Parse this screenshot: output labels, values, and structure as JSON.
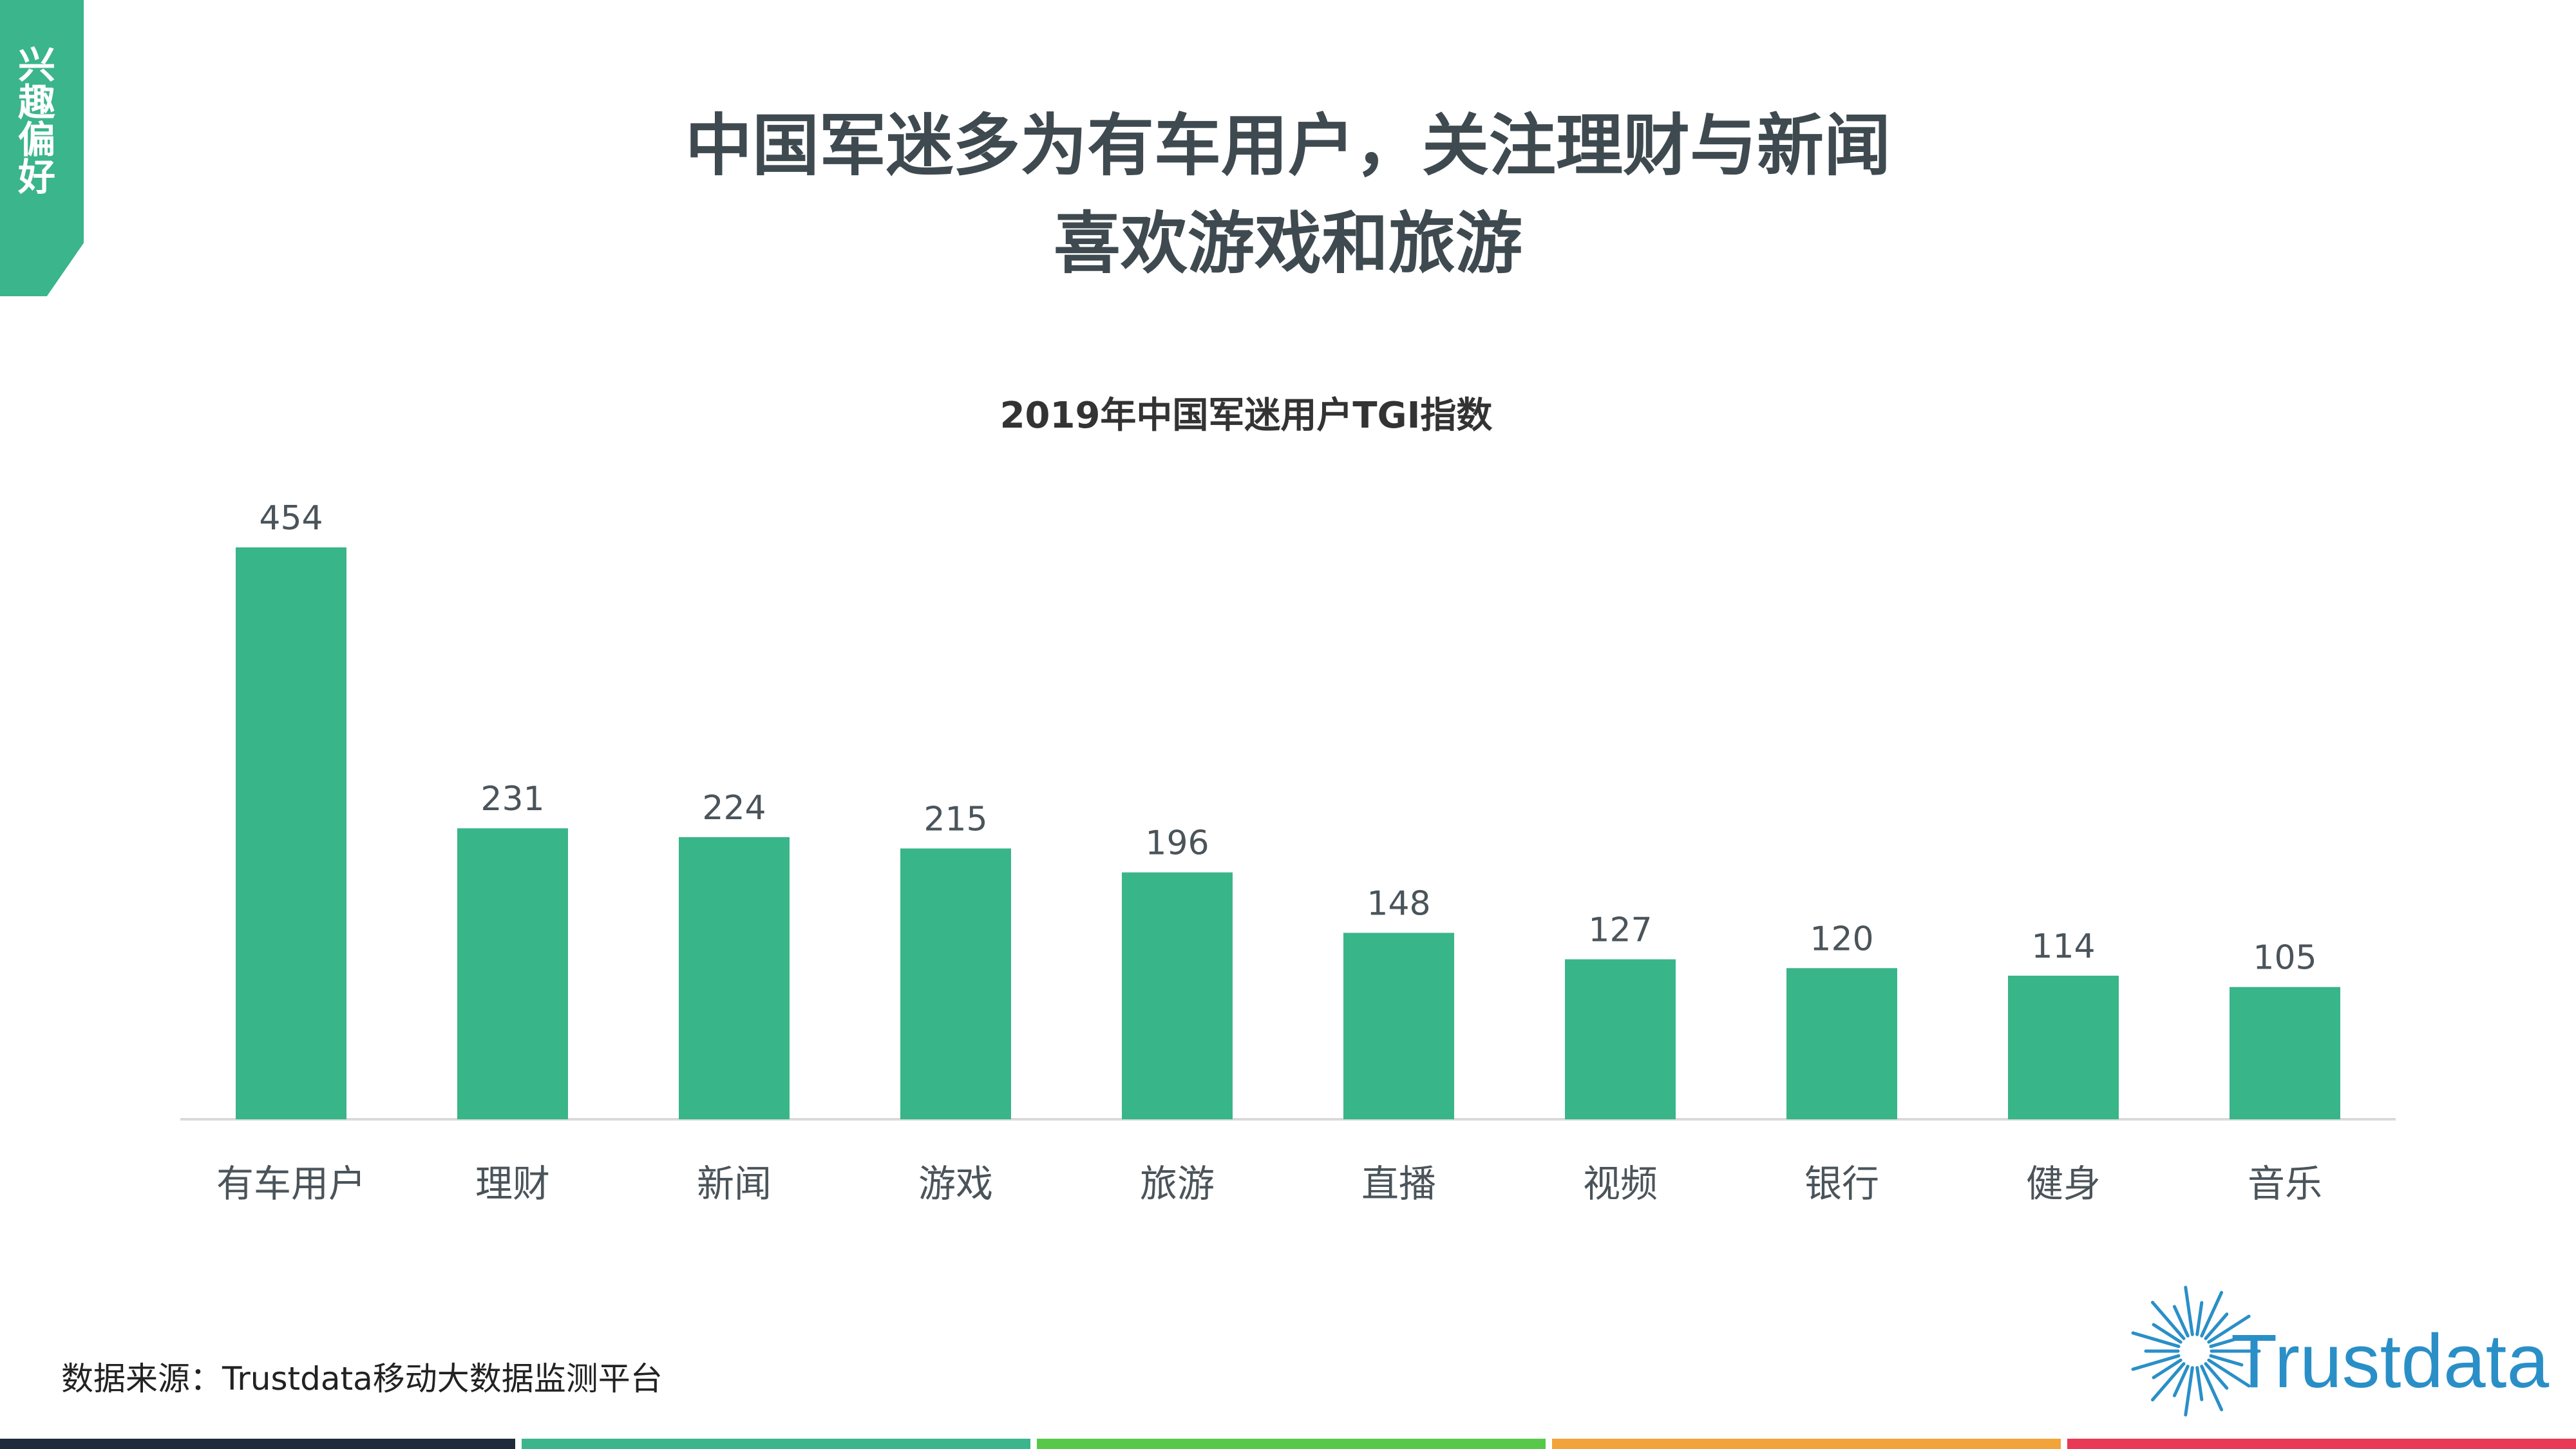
{
  "section_tab": {
    "label": "兴趣偏好",
    "color": "#3bb58b"
  },
  "headline": {
    "line1": "中国军迷多为有车用户，关注理财与新闻",
    "line2": "喜欢游戏和旅游"
  },
  "chart_data": {
    "type": "bar",
    "title": "2019年中国军迷用户TGI指数",
    "categories": [
      "有车用户",
      "理财",
      "新闻",
      "游戏",
      "旅游",
      "直播",
      "视频",
      "银行",
      "健身",
      "音乐"
    ],
    "values": [
      454,
      231,
      224,
      215,
      196,
      148,
      127,
      120,
      114,
      105
    ],
    "data_labels": [
      "454",
      "231",
      "224",
      "215",
      "196",
      "148",
      "127",
      "120",
      "114",
      "105"
    ],
    "xlabel": "",
    "ylabel": "",
    "ylim": [
      0,
      454
    ],
    "grid": false,
    "bar_color": "#39b58a"
  },
  "source": "数据来源：Trustdata移动大数据监测平台",
  "logo": {
    "text": "Trustdata",
    "color": "#2a8fc7"
  },
  "bottom_stripes": [
    "#1f2a3c",
    "#3bb58b",
    "#58c84a",
    "#f2a43a",
    "#e93a55"
  ]
}
